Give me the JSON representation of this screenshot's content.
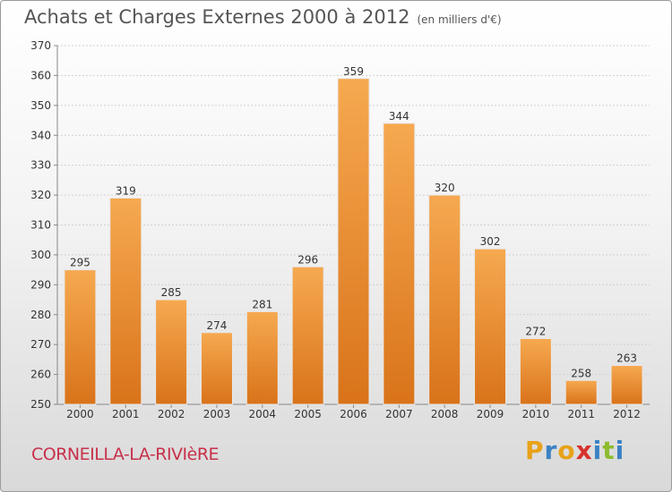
{
  "title": "Achats et Charges Externes 2000 à 2012",
  "subtitle": "(en milliers d'€)",
  "commune": "CORNEILLA-LA-RIVIèRE",
  "logo": {
    "letters": [
      "P",
      "r",
      "o",
      "x",
      "i",
      "t",
      "i"
    ],
    "colors": [
      "#e8a21a",
      "#3b82c4",
      "#e8a21a",
      "#d6322e",
      "#3b82c4",
      "#8cbc2e",
      "#3b82c4"
    ]
  },
  "colors": {
    "bar_top": "#f6a950",
    "bar_bottom": "#d9731a",
    "commune": "#c7314a"
  },
  "chart_data": {
    "type": "bar",
    "title": "Achats et Charges Externes 2000 à 2012",
    "subtitle": "(en milliers d'€)",
    "categories": [
      "2000",
      "2001",
      "2002",
      "2003",
      "2004",
      "2005",
      "2006",
      "2007",
      "2008",
      "2009",
      "2010",
      "2011",
      "2012"
    ],
    "values": [
      295,
      319,
      285,
      274,
      281,
      296,
      359,
      344,
      320,
      302,
      272,
      258,
      263
    ],
    "ylim": [
      250,
      370
    ],
    "yticks": [
      250,
      260,
      270,
      280,
      290,
      300,
      310,
      320,
      330,
      340,
      350,
      360,
      370
    ],
    "grid": true
  }
}
